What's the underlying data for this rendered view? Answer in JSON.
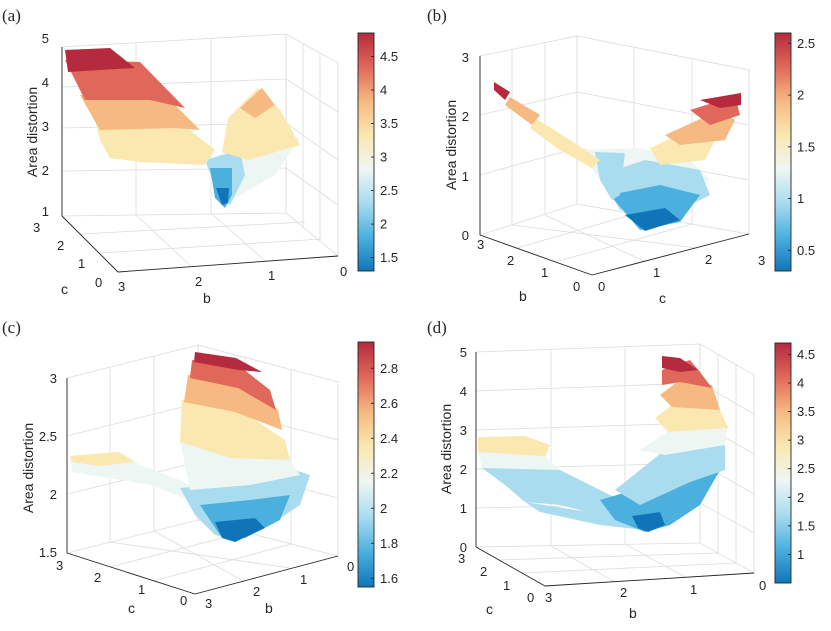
{
  "figure": {
    "panels": [
      {
        "letter": "(a)",
        "zlabel": "Area distortion",
        "xlabel": "b",
        "ylabel": "c",
        "left_label": "c",
        "right_label": "b"
      },
      {
        "letter": "(b)",
        "zlabel": "Area distortion",
        "xlabel": "b",
        "ylabel": "c",
        "left_label": "b",
        "right_label": "c"
      },
      {
        "letter": "(c)",
        "zlabel": "Area distortion",
        "xlabel": "b",
        "ylabel": "c",
        "left_label": "c",
        "right_label": "b"
      },
      {
        "letter": "(d)",
        "zlabel": "Area distortion",
        "xlabel": "b",
        "ylabel": "c",
        "left_label": "c",
        "right_label": "b"
      }
    ]
  },
  "colors": {
    "colormap": [
      "#0f75b8",
      "#4cb0df",
      "#a9dcef",
      "#eef6f3",
      "#fbe7b0",
      "#f6b982",
      "#e0685a",
      "#b52a3d"
    ],
    "grid": "#dcdcdc",
    "axis": "#262626"
  },
  "chart_data": [
    {
      "type": "surface",
      "title": "(a)",
      "zlabel": "Area distortion",
      "xlabel": "b",
      "ylabel": "c",
      "xlim": [
        0,
        3
      ],
      "ylim": [
        0,
        3
      ],
      "zlim": [
        1,
        5
      ],
      "x_ticks": [
        "0",
        "1",
        "2",
        "3"
      ],
      "y_ticks": [
        "0",
        "1",
        "2",
        "3"
      ],
      "z_ticks": [
        "1",
        "2",
        "3",
        "4",
        "5"
      ],
      "colorbar": {
        "range": [
          1.3,
          4.85
        ],
        "ticks": [
          1.5,
          2,
          2.5,
          3,
          3.5,
          4,
          4.5
        ],
        "tick_labels": [
          "1.5",
          "2",
          "2.5",
          "3",
          "3.5",
          "4",
          "4.5"
        ]
      },
      "surface": {
        "b": [
          0,
          0.5,
          1,
          1.5,
          2,
          2.5,
          3
        ],
        "c": [
          0,
          0.5,
          1,
          1.5,
          2,
          2.5,
          3
        ],
        "z": [
          [
            2.8,
            2.0,
            1.4,
            1.6,
            2.3,
            3.4,
            4.8
          ],
          [
            2.9,
            2.3,
            2.0,
            2.1,
            2.6,
            3.5,
            4.7
          ],
          [
            3.0,
            2.6,
            2.4,
            2.5,
            2.9,
            3.6,
            4.7
          ],
          [
            3.2,
            2.85,
            2.65,
            2.75,
            3.1,
            3.8,
            4.75
          ],
          [
            3.5,
            3.1,
            2.85,
            2.95,
            3.35,
            4.0,
            4.8
          ],
          [
            3.8,
            3.3,
            3.0,
            3.1,
            3.55,
            4.3,
            4.85
          ],
          [
            4.2,
            3.5,
            3.1,
            3.2,
            3.7,
            4.5,
            4.85
          ]
        ]
      }
    },
    {
      "type": "surface",
      "title": "(b)",
      "zlabel": "Area distortion",
      "xlabel": "b",
      "ylabel": "c",
      "xlim": [
        0,
        3
      ],
      "ylim": [
        0,
        3
      ],
      "zlim": [
        0,
        3
      ],
      "x_ticks": [
        "0",
        "1",
        "2",
        "3"
      ],
      "y_ticks": [
        "0",
        "1",
        "2",
        "3"
      ],
      "z_ticks": [
        "0",
        "1",
        "2",
        "3"
      ],
      "colorbar": {
        "range": [
          0.3,
          2.6
        ],
        "ticks": [
          0.5,
          1,
          1.5,
          2,
          2.5
        ],
        "tick_labels": [
          "0.5",
          "1",
          "1.5",
          "2",
          "2.5"
        ]
      },
      "surface": {
        "b": [
          0,
          0.5,
          1,
          1.5,
          2,
          2.5,
          3
        ],
        "c": [
          0,
          0.5,
          1,
          1.5,
          2,
          2.5,
          3
        ],
        "z": [
          [
            0.9,
            0.6,
            0.35,
            0.3,
            0.55,
            1.1,
            2.5
          ],
          [
            1.2,
            0.9,
            0.7,
            0.6,
            0.8,
            1.3,
            2.4
          ],
          [
            1.5,
            1.2,
            0.95,
            0.8,
            0.95,
            1.4,
            2.3
          ],
          [
            1.8,
            1.4,
            1.1,
            0.95,
            1.1,
            1.5,
            2.3
          ],
          [
            2.1,
            1.6,
            1.25,
            1.1,
            1.2,
            1.6,
            2.3
          ],
          [
            2.35,
            1.8,
            1.4,
            1.2,
            1.3,
            1.7,
            2.3
          ],
          [
            2.55,
            2.0,
            1.55,
            1.3,
            1.4,
            1.8,
            2.3
          ]
        ]
      }
    },
    {
      "type": "surface",
      "title": "(c)",
      "zlabel": "Area distortion",
      "xlabel": "b",
      "ylabel": "c",
      "xlim": [
        0,
        3
      ],
      "ylim": [
        0,
        3
      ],
      "zlim": [
        1.5,
        3
      ],
      "x_ticks": [
        "0",
        "1",
        "2",
        "3"
      ],
      "y_ticks": [
        "0",
        "1",
        "2",
        "3"
      ],
      "z_ticks": [
        "1.5",
        "2",
        "2.5",
        "3"
      ],
      "colorbar": {
        "range": [
          1.55,
          2.95
        ],
        "ticks": [
          1.6,
          1.8,
          2,
          2.2,
          2.4,
          2.6,
          2.8
        ],
        "tick_labels": [
          "1.6",
          "1.8",
          "2",
          "2.2",
          "2.4",
          "2.6",
          "2.8"
        ]
      },
      "surface": {
        "b": [
          0,
          0.5,
          1,
          1.5,
          2,
          2.5,
          3
        ],
        "c": [
          0,
          0.5,
          1,
          1.5,
          2,
          2.5,
          3
        ],
        "z": [
          [
            2.1,
            2.4,
            2.7,
            2.9,
            2.7,
            2.2,
            1.9
          ],
          [
            2.05,
            2.2,
            2.4,
            2.55,
            2.3,
            1.9,
            1.75
          ],
          [
            2.0,
            2.05,
            2.1,
            2.15,
            1.95,
            1.7,
            1.6
          ],
          [
            2.0,
            2.0,
            1.95,
            1.9,
            1.75,
            1.62,
            1.58
          ],
          [
            2.05,
            2.05,
            2.0,
            1.95,
            1.85,
            1.75,
            1.8
          ],
          [
            2.1,
            2.1,
            2.1,
            2.05,
            2.0,
            2.0,
            2.05
          ],
          [
            2.2,
            2.2,
            2.2,
            2.2,
            2.2,
            2.25,
            2.3
          ]
        ]
      }
    },
    {
      "type": "surface",
      "title": "(d)",
      "zlabel": "Area distortion",
      "xlabel": "b",
      "ylabel": "c",
      "xlim": [
        0,
        3
      ],
      "ylim": [
        0,
        3
      ],
      "zlim": [
        0,
        5
      ],
      "x_ticks": [
        "0",
        "1",
        "2",
        "3"
      ],
      "y_ticks": [
        "0",
        "1",
        "2",
        "3"
      ],
      "z_ticks": [
        "0",
        "1",
        "2",
        "3",
        "4",
        "5"
      ],
      "colorbar": {
        "range": [
          0.5,
          4.7
        ],
        "ticks": [
          1,
          1.5,
          2,
          2.5,
          3,
          3.5,
          4,
          4.5
        ],
        "tick_labels": [
          "1",
          "1.5",
          "2",
          "2.5",
          "3",
          "3.5",
          "4",
          "4.5"
        ]
      },
      "surface": {
        "b": [
          0,
          0.5,
          1,
          1.5,
          2,
          2.5,
          3
        ],
        "c": [
          0,
          0.5,
          1,
          1.5,
          2,
          2.5,
          3
        ],
        "z": [
          [
            3.0,
            4.0,
            4.6,
            3.5,
            1.5,
            0.8,
            1.0
          ],
          [
            2.4,
            3.0,
            3.2,
            2.4,
            1.1,
            0.7,
            1.0
          ],
          [
            1.8,
            2.1,
            2.1,
            1.5,
            0.8,
            0.65,
            1.1
          ],
          [
            1.4,
            1.5,
            1.3,
            1.0,
            0.6,
            0.7,
            1.4
          ],
          [
            1.2,
            1.1,
            0.9,
            0.7,
            0.6,
            0.9,
            1.9
          ],
          [
            1.1,
            1.0,
            0.85,
            0.7,
            0.7,
            1.2,
            2.4
          ],
          [
            1.0,
            1.0,
            0.9,
            0.8,
            0.9,
            1.6,
            2.8
          ]
        ]
      }
    }
  ]
}
